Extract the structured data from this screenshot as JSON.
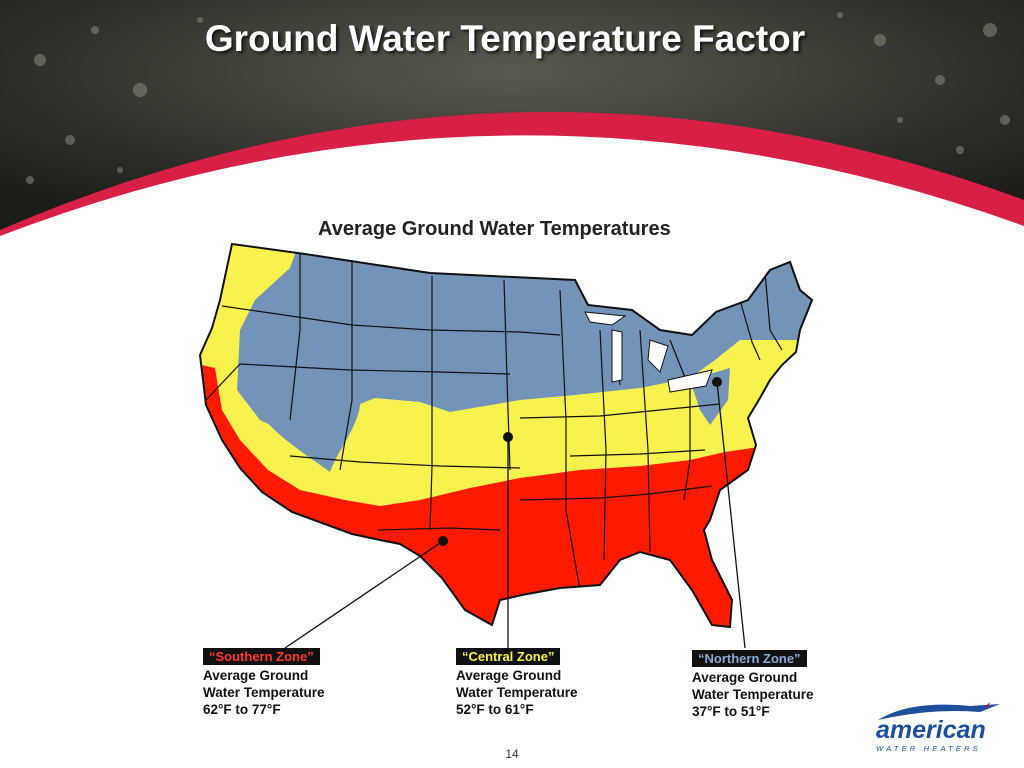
{
  "slide": {
    "title": "Ground Water Temperature Factor",
    "page_number": "14"
  },
  "map": {
    "title": "Average Ground Water Temperatures",
    "colors": {
      "northern": "#7393b9",
      "central": "#f7f24e",
      "southern": "#ff1a00",
      "state_lines": "#111111"
    }
  },
  "zones": {
    "southern": {
      "name": "“Southern Zone”",
      "line1": "Average Ground",
      "line2": "Water Temperature",
      "range": "62°F to 77°F",
      "tag_text_color": "#ff3b30"
    },
    "central": {
      "name": "“Central Zone”",
      "line1": "Average Ground",
      "line2": "Water Temperature",
      "range": "52°F to 61°F",
      "tag_text_color": "#f7f24e"
    },
    "northern": {
      "name": "“Northern Zone”",
      "line1": "Average Ground",
      "line2": "Water Temperature",
      "range": "37°F to 51°F",
      "tag_text_color": "#8aa9d6"
    }
  },
  "logo": {
    "word": "american",
    "subtitle": "WATER HEATERS",
    "color": "#1e4f9a"
  }
}
